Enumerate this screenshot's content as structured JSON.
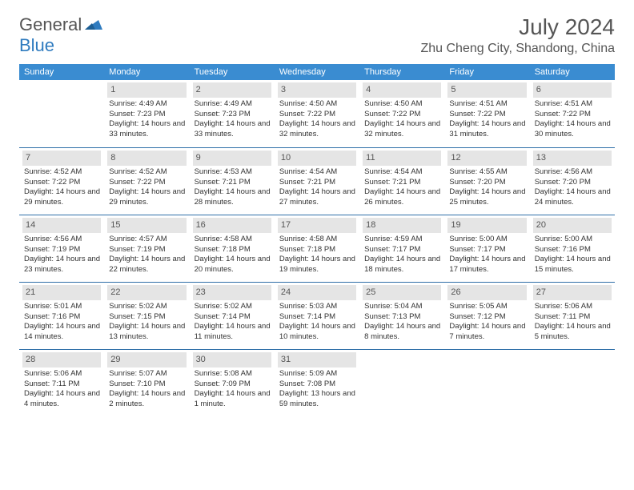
{
  "logo": {
    "general": "General",
    "blue": "Blue",
    "icon_color": "#2f7bbf"
  },
  "title": {
    "month": "July 2024",
    "location": "Zhu Cheng City, Shandong, China"
  },
  "weekdays": [
    "Sunday",
    "Monday",
    "Tuesday",
    "Wednesday",
    "Thursday",
    "Friday",
    "Saturday"
  ],
  "styles": {
    "header_bg": "#3a8cd1",
    "header_text_color": "#ffffff",
    "daynum_bg": "#e5e5e5",
    "row_border": "#2f6fa8",
    "body_text": "#333333"
  },
  "grid": {
    "rows": 5,
    "cols": 7,
    "cells": [
      {
        "day": "",
        "sunrise": "",
        "sunset": "",
        "daylight": ""
      },
      {
        "day": "1",
        "sunrise": "Sunrise: 4:49 AM",
        "sunset": "Sunset: 7:23 PM",
        "daylight": "Daylight: 14 hours and 33 minutes."
      },
      {
        "day": "2",
        "sunrise": "Sunrise: 4:49 AM",
        "sunset": "Sunset: 7:23 PM",
        "daylight": "Daylight: 14 hours and 33 minutes."
      },
      {
        "day": "3",
        "sunrise": "Sunrise: 4:50 AM",
        "sunset": "Sunset: 7:22 PM",
        "daylight": "Daylight: 14 hours and 32 minutes."
      },
      {
        "day": "4",
        "sunrise": "Sunrise: 4:50 AM",
        "sunset": "Sunset: 7:22 PM",
        "daylight": "Daylight: 14 hours and 32 minutes."
      },
      {
        "day": "5",
        "sunrise": "Sunrise: 4:51 AM",
        "sunset": "Sunset: 7:22 PM",
        "daylight": "Daylight: 14 hours and 31 minutes."
      },
      {
        "day": "6",
        "sunrise": "Sunrise: 4:51 AM",
        "sunset": "Sunset: 7:22 PM",
        "daylight": "Daylight: 14 hours and 30 minutes."
      },
      {
        "day": "7",
        "sunrise": "Sunrise: 4:52 AM",
        "sunset": "Sunset: 7:22 PM",
        "daylight": "Daylight: 14 hours and 29 minutes."
      },
      {
        "day": "8",
        "sunrise": "Sunrise: 4:52 AM",
        "sunset": "Sunset: 7:22 PM",
        "daylight": "Daylight: 14 hours and 29 minutes."
      },
      {
        "day": "9",
        "sunrise": "Sunrise: 4:53 AM",
        "sunset": "Sunset: 7:21 PM",
        "daylight": "Daylight: 14 hours and 28 minutes."
      },
      {
        "day": "10",
        "sunrise": "Sunrise: 4:54 AM",
        "sunset": "Sunset: 7:21 PM",
        "daylight": "Daylight: 14 hours and 27 minutes."
      },
      {
        "day": "11",
        "sunrise": "Sunrise: 4:54 AM",
        "sunset": "Sunset: 7:21 PM",
        "daylight": "Daylight: 14 hours and 26 minutes."
      },
      {
        "day": "12",
        "sunrise": "Sunrise: 4:55 AM",
        "sunset": "Sunset: 7:20 PM",
        "daylight": "Daylight: 14 hours and 25 minutes."
      },
      {
        "day": "13",
        "sunrise": "Sunrise: 4:56 AM",
        "sunset": "Sunset: 7:20 PM",
        "daylight": "Daylight: 14 hours and 24 minutes."
      },
      {
        "day": "14",
        "sunrise": "Sunrise: 4:56 AM",
        "sunset": "Sunset: 7:19 PM",
        "daylight": "Daylight: 14 hours and 23 minutes."
      },
      {
        "day": "15",
        "sunrise": "Sunrise: 4:57 AM",
        "sunset": "Sunset: 7:19 PM",
        "daylight": "Daylight: 14 hours and 22 minutes."
      },
      {
        "day": "16",
        "sunrise": "Sunrise: 4:58 AM",
        "sunset": "Sunset: 7:18 PM",
        "daylight": "Daylight: 14 hours and 20 minutes."
      },
      {
        "day": "17",
        "sunrise": "Sunrise: 4:58 AM",
        "sunset": "Sunset: 7:18 PM",
        "daylight": "Daylight: 14 hours and 19 minutes."
      },
      {
        "day": "18",
        "sunrise": "Sunrise: 4:59 AM",
        "sunset": "Sunset: 7:17 PM",
        "daylight": "Daylight: 14 hours and 18 minutes."
      },
      {
        "day": "19",
        "sunrise": "Sunrise: 5:00 AM",
        "sunset": "Sunset: 7:17 PM",
        "daylight": "Daylight: 14 hours and 17 minutes."
      },
      {
        "day": "20",
        "sunrise": "Sunrise: 5:00 AM",
        "sunset": "Sunset: 7:16 PM",
        "daylight": "Daylight: 14 hours and 15 minutes."
      },
      {
        "day": "21",
        "sunrise": "Sunrise: 5:01 AM",
        "sunset": "Sunset: 7:16 PM",
        "daylight": "Daylight: 14 hours and 14 minutes."
      },
      {
        "day": "22",
        "sunrise": "Sunrise: 5:02 AM",
        "sunset": "Sunset: 7:15 PM",
        "daylight": "Daylight: 14 hours and 13 minutes."
      },
      {
        "day": "23",
        "sunrise": "Sunrise: 5:02 AM",
        "sunset": "Sunset: 7:14 PM",
        "daylight": "Daylight: 14 hours and 11 minutes."
      },
      {
        "day": "24",
        "sunrise": "Sunrise: 5:03 AM",
        "sunset": "Sunset: 7:14 PM",
        "daylight": "Daylight: 14 hours and 10 minutes."
      },
      {
        "day": "25",
        "sunrise": "Sunrise: 5:04 AM",
        "sunset": "Sunset: 7:13 PM",
        "daylight": "Daylight: 14 hours and 8 minutes."
      },
      {
        "day": "26",
        "sunrise": "Sunrise: 5:05 AM",
        "sunset": "Sunset: 7:12 PM",
        "daylight": "Daylight: 14 hours and 7 minutes."
      },
      {
        "day": "27",
        "sunrise": "Sunrise: 5:06 AM",
        "sunset": "Sunset: 7:11 PM",
        "daylight": "Daylight: 14 hours and 5 minutes."
      },
      {
        "day": "28",
        "sunrise": "Sunrise: 5:06 AM",
        "sunset": "Sunset: 7:11 PM",
        "daylight": "Daylight: 14 hours and 4 minutes."
      },
      {
        "day": "29",
        "sunrise": "Sunrise: 5:07 AM",
        "sunset": "Sunset: 7:10 PM",
        "daylight": "Daylight: 14 hours and 2 minutes."
      },
      {
        "day": "30",
        "sunrise": "Sunrise: 5:08 AM",
        "sunset": "Sunset: 7:09 PM",
        "daylight": "Daylight: 14 hours and 1 minute."
      },
      {
        "day": "31",
        "sunrise": "Sunrise: 5:09 AM",
        "sunset": "Sunset: 7:08 PM",
        "daylight": "Daylight: 13 hours and 59 minutes."
      },
      {
        "day": "",
        "sunrise": "",
        "sunset": "",
        "daylight": ""
      },
      {
        "day": "",
        "sunrise": "",
        "sunset": "",
        "daylight": ""
      },
      {
        "day": "",
        "sunrise": "",
        "sunset": "",
        "daylight": ""
      }
    ]
  }
}
